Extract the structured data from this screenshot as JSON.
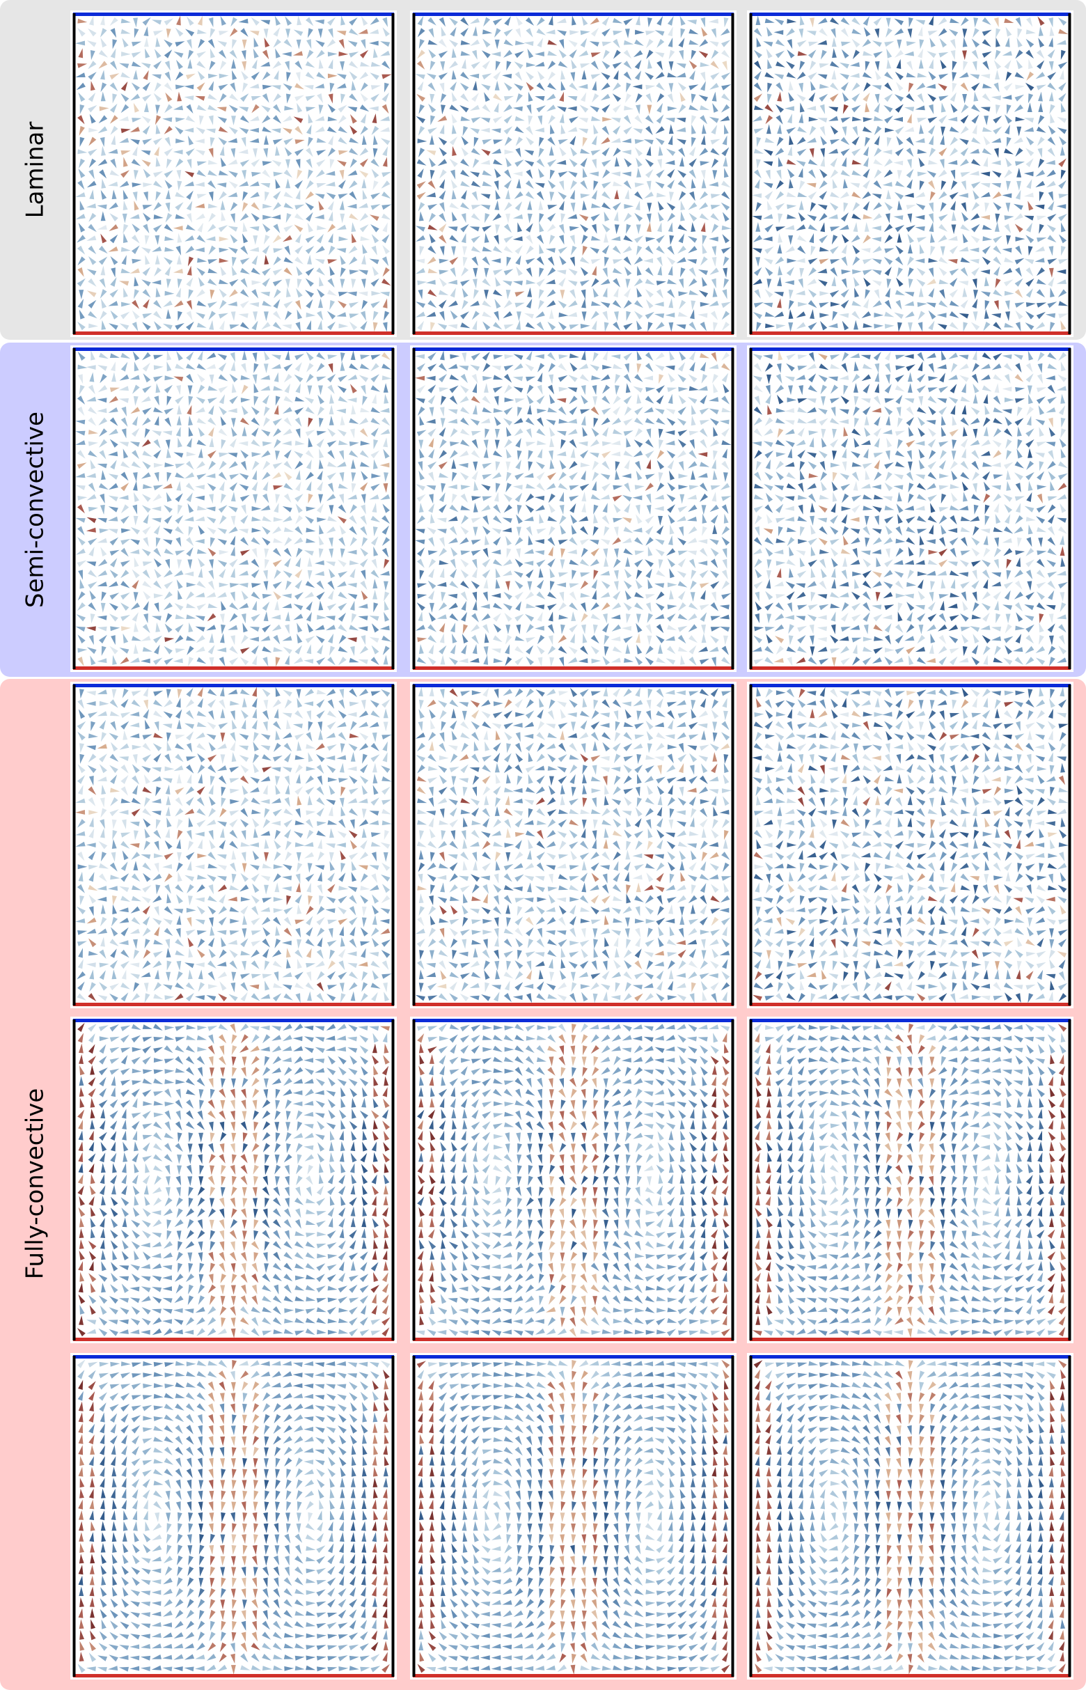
{
  "groups": [
    {
      "label": "Laminar"
    },
    {
      "label": "Semi-convective"
    },
    {
      "label": "Fully-convective"
    }
  ]
}
